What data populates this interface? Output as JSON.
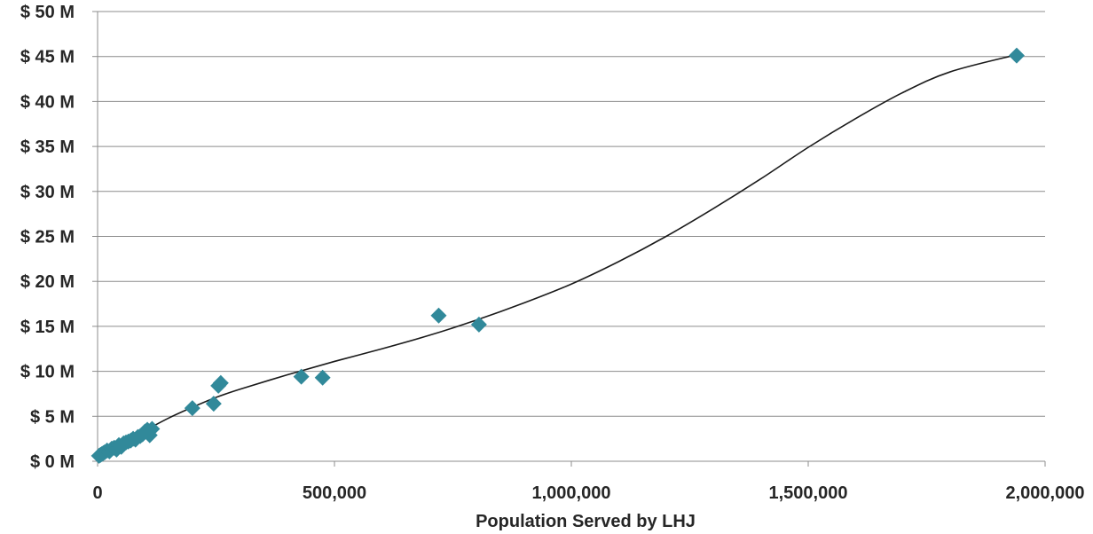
{
  "chart_data": {
    "type": "scatter",
    "title": "",
    "xlabel": "Population Served by LHJ",
    "ylabel": "",
    "xlim": [
      0,
      2000000
    ],
    "ylim": [
      0,
      50
    ],
    "x_ticks": [
      0,
      500000,
      1000000,
      1500000,
      2000000
    ],
    "x_tick_labels": [
      "0",
      "500,000",
      "1,000,000",
      "1,500,000",
      "2,000,000"
    ],
    "y_ticks": [
      0,
      5,
      10,
      15,
      20,
      25,
      30,
      35,
      40,
      45,
      50
    ],
    "y_tick_labels": [
      "$ 0 M",
      "$ 5 M",
      "$ 10 M",
      "$ 15 M",
      "$ 20 M",
      "$ 25 M",
      "$ 30 M",
      "$ 35 M",
      "$ 40 M",
      "$ 45 M",
      "$ 50 M"
    ],
    "grid": "horizontal",
    "legend": "none",
    "marker_color": "#31899A",
    "trend_color": "#1a1a1a",
    "series": [
      {
        "marker": "diamond",
        "points": [
          [
            3000,
            0.6
          ],
          [
            6000,
            0.7
          ],
          [
            9000,
            0.8
          ],
          [
            12000,
            0.9
          ],
          [
            15000,
            1.0
          ],
          [
            20000,
            1.2
          ],
          [
            25000,
            1.1
          ],
          [
            30000,
            1.4
          ],
          [
            35000,
            1.5
          ],
          [
            40000,
            1.3
          ],
          [
            45000,
            1.8
          ],
          [
            50000,
            1.6
          ],
          [
            55000,
            2.0
          ],
          [
            60000,
            2.1
          ],
          [
            65000,
            2.2
          ],
          [
            70000,
            2.3
          ],
          [
            75000,
            2.5
          ],
          [
            80000,
            2.4
          ],
          [
            85000,
            2.7
          ],
          [
            90000,
            2.8
          ],
          [
            95000,
            3.0
          ],
          [
            100000,
            3.3
          ],
          [
            105000,
            3.5
          ],
          [
            110000,
            2.9
          ],
          [
            115000,
            3.6
          ],
          [
            200000,
            5.9
          ],
          [
            245000,
            6.4
          ],
          [
            255000,
            8.4
          ],
          [
            260000,
            8.7
          ],
          [
            430000,
            9.4
          ],
          [
            475000,
            9.3
          ],
          [
            720000,
            16.2
          ],
          [
            805000,
            15.2
          ],
          [
            1940000,
            45.1
          ]
        ]
      }
    ],
    "trendline": {
      "type": "polynomial",
      "points": [
        [
          0,
          0.2
        ],
        [
          50000,
          1.9
        ],
        [
          100000,
          3.4
        ],
        [
          150000,
          4.8
        ],
        [
          200000,
          6.0
        ],
        [
          250000,
          7.1
        ],
        [
          300000,
          8.0
        ],
        [
          400000,
          9.6
        ],
        [
          500000,
          11.1
        ],
        [
          600000,
          12.5
        ],
        [
          700000,
          14.0
        ],
        [
          800000,
          15.7
        ],
        [
          900000,
          17.6
        ],
        [
          1000000,
          19.7
        ],
        [
          1100000,
          22.2
        ],
        [
          1200000,
          25.0
        ],
        [
          1300000,
          28.1
        ],
        [
          1400000,
          31.4
        ],
        [
          1500000,
          34.9
        ],
        [
          1600000,
          38.1
        ],
        [
          1700000,
          41.0
        ],
        [
          1800000,
          43.3
        ],
        [
          1940000,
          45.2
        ]
      ]
    }
  }
}
